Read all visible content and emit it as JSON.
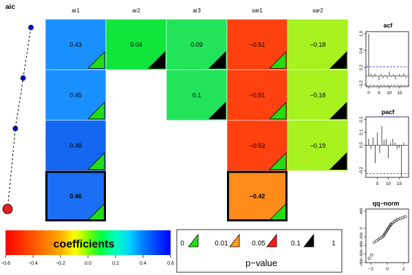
{
  "aic_panel": {
    "title": "aic",
    "points": [
      {
        "model": 1,
        "rank": 4
      },
      {
        "model": 2,
        "rank": 3
      },
      {
        "model": 3,
        "rank": 2
      },
      {
        "model": 4,
        "rank": 1,
        "selected": true
      }
    ],
    "point_color": "#0000CC",
    "selected_color": "#E8201B"
  },
  "coef_matrix": {
    "columns": [
      "ar1",
      "ar2",
      "ar3",
      "sar1",
      "sar2"
    ],
    "rows": [
      [
        {
          "col": "ar1",
          "value": 0.43,
          "label": "0.43",
          "color": "#1A90FF",
          "pcolor": "#22DD11"
        },
        {
          "col": "ar2",
          "value": 0.04,
          "label": "0.04",
          "color": "#0FE53A",
          "pcolor": "#000000"
        },
        {
          "col": "ar3",
          "value": 0.09,
          "label": "0.09",
          "color": "#21E45A",
          "pcolor": "#000000"
        },
        {
          "col": "sar1",
          "value": -0.51,
          "label": "−0.51",
          "color": "#FF400F",
          "pcolor": "#22DD11"
        },
        {
          "col": "sar2",
          "value": -0.18,
          "label": "−0.18",
          "color": "#A7F21F",
          "pcolor": "#000000"
        }
      ],
      [
        {
          "col": "ar1",
          "value": 0.45,
          "label": "0.45",
          "color": "#1A90FF",
          "pcolor": "#22DD11"
        },
        {
          "col": "ar3",
          "value": 0.1,
          "label": "0.1",
          "color": "#21E45A",
          "pcolor": "#000000"
        },
        {
          "col": "sar1",
          "value": -0.51,
          "label": "−0.51",
          "color": "#FF400F",
          "pcolor": "#22DD11"
        },
        {
          "col": "sar2",
          "value": -0.18,
          "label": "−0.18",
          "color": "#A7F21F",
          "pcolor": "#000000"
        }
      ],
      [
        {
          "col": "ar1",
          "value": 0.48,
          "label": "0.48",
          "color": "#1467F0",
          "pcolor": "#22DD11"
        },
        {
          "col": "sar1",
          "value": -0.52,
          "label": "−0.52",
          "color": "#FF400F",
          "pcolor": "#22DD11"
        },
        {
          "col": "sar2",
          "value": -0.19,
          "label": "−0.19",
          "color": "#A7F21F",
          "pcolor": "#000000"
        }
      ],
      [
        {
          "col": "ar1",
          "value": 0.46,
          "label": "0.46",
          "color": "#1A6FF5",
          "pcolor": "#22DD11",
          "selected": true
        },
        {
          "col": "sar1",
          "value": -0.42,
          "label": "−0.42",
          "color": "#FF8C1A",
          "pcolor": "#22DD11",
          "selected": true
        }
      ]
    ]
  },
  "coef_legend": {
    "title": "coefficients",
    "ticks": [
      "−0.6",
      "−0.4",
      "−0.2",
      "0.0",
      "0.2",
      "0.4",
      "0.6"
    ]
  },
  "pvalue_legend": {
    "labels": [
      "0",
      "0.01",
      "0.05",
      "0.1",
      "1"
    ],
    "colors": [
      "#22DD11",
      "#FF9A1A",
      "#FF1A1A",
      "#000000"
    ],
    "title": "p−value"
  },
  "chart_data": [
    {
      "type": "line",
      "title": "aic",
      "note": "relative ordering of models; axis unlabeled",
      "x": [
        1,
        2,
        3,
        4
      ],
      "y": [
        4,
        3,
        2,
        1
      ]
    },
    {
      "type": "heatmap",
      "title": "",
      "columns": [
        "ar1",
        "ar2",
        "ar3",
        "sar1",
        "sar2"
      ],
      "rows": [
        [
          0.43,
          0.04,
          0.09,
          -0.51,
          -0.18
        ],
        [
          0.45,
          null,
          0.1,
          -0.51,
          -0.18
        ],
        [
          0.48,
          null,
          null,
          -0.52,
          -0.19
        ],
        [
          0.46,
          null,
          null,
          -0.42,
          null
        ]
      ],
      "scale": [
        -0.6,
        0.6
      ]
    },
    {
      "type": "bar",
      "title": "acf",
      "x": [
        0,
        1,
        2,
        3,
        4,
        5,
        6,
        7,
        8,
        9,
        10,
        11,
        12,
        13,
        14,
        15,
        16,
        17,
        18
      ],
      "values": [
        1.0,
        0.05,
        -0.03,
        0.06,
        0.02,
        -0.1,
        0.05,
        -0.05,
        0.03,
        -0.06,
        0.1,
        -0.02,
        0.04,
        -0.08,
        0.02,
        0.05,
        -0.03,
        0.06,
        -0.04
      ],
      "ci": 0.22,
      "yticks": [
        "−0.2",
        "0.2",
        "0.6",
        "1.0"
      ],
      "xticks": [
        "0",
        "5",
        "10",
        "15"
      ],
      "ylim": [
        -0.25,
        1.05
      ]
    },
    {
      "type": "bar",
      "title": "pacf",
      "x": [
        1,
        2,
        3,
        4,
        5,
        6,
        7,
        8,
        9,
        10,
        11,
        12,
        13,
        14,
        15,
        16,
        17,
        18
      ],
      "values": [
        0.05,
        -0.03,
        0.06,
        -0.14,
        0.1,
        -0.06,
        0.15,
        0.04,
        0.05,
        -0.1,
        0.02,
        0.05,
        0.02,
        -0.03,
        -0.02,
        -0.25,
        0.02,
        0.0
      ],
      "ci": 0.22,
      "yticks": [
        "−0.2",
        "0.0",
        "0.1",
        "0.2"
      ],
      "xticks": [
        "5",
        "10",
        "15"
      ],
      "ylim": [
        -0.25,
        0.22
      ]
    },
    {
      "type": "scatter",
      "title": "qq−norm",
      "xticks": [
        "−2",
        "0",
        "2"
      ],
      "yticks": [
        "−800",
        "−600",
        "−400",
        "−200",
        "0",
        "400"
      ],
      "x": [
        -2.2,
        -1.9,
        -1.6,
        -1.3,
        -1.1,
        -0.9,
        -0.7,
        -0.5,
        -0.4,
        -0.3,
        -0.2,
        -0.1,
        0,
        0.1,
        0.2,
        0.3,
        0.4,
        0.5,
        0.7,
        0.9,
        1.1,
        1.3,
        1.6,
        1.9,
        2.2
      ],
      "y": [
        -700,
        -620,
        -330,
        -290,
        -260,
        -240,
        -210,
        -190,
        -160,
        -130,
        -100,
        -70,
        -40,
        -10,
        20,
        50,
        80,
        100,
        130,
        160,
        190,
        210,
        230,
        250,
        270
      ]
    }
  ]
}
